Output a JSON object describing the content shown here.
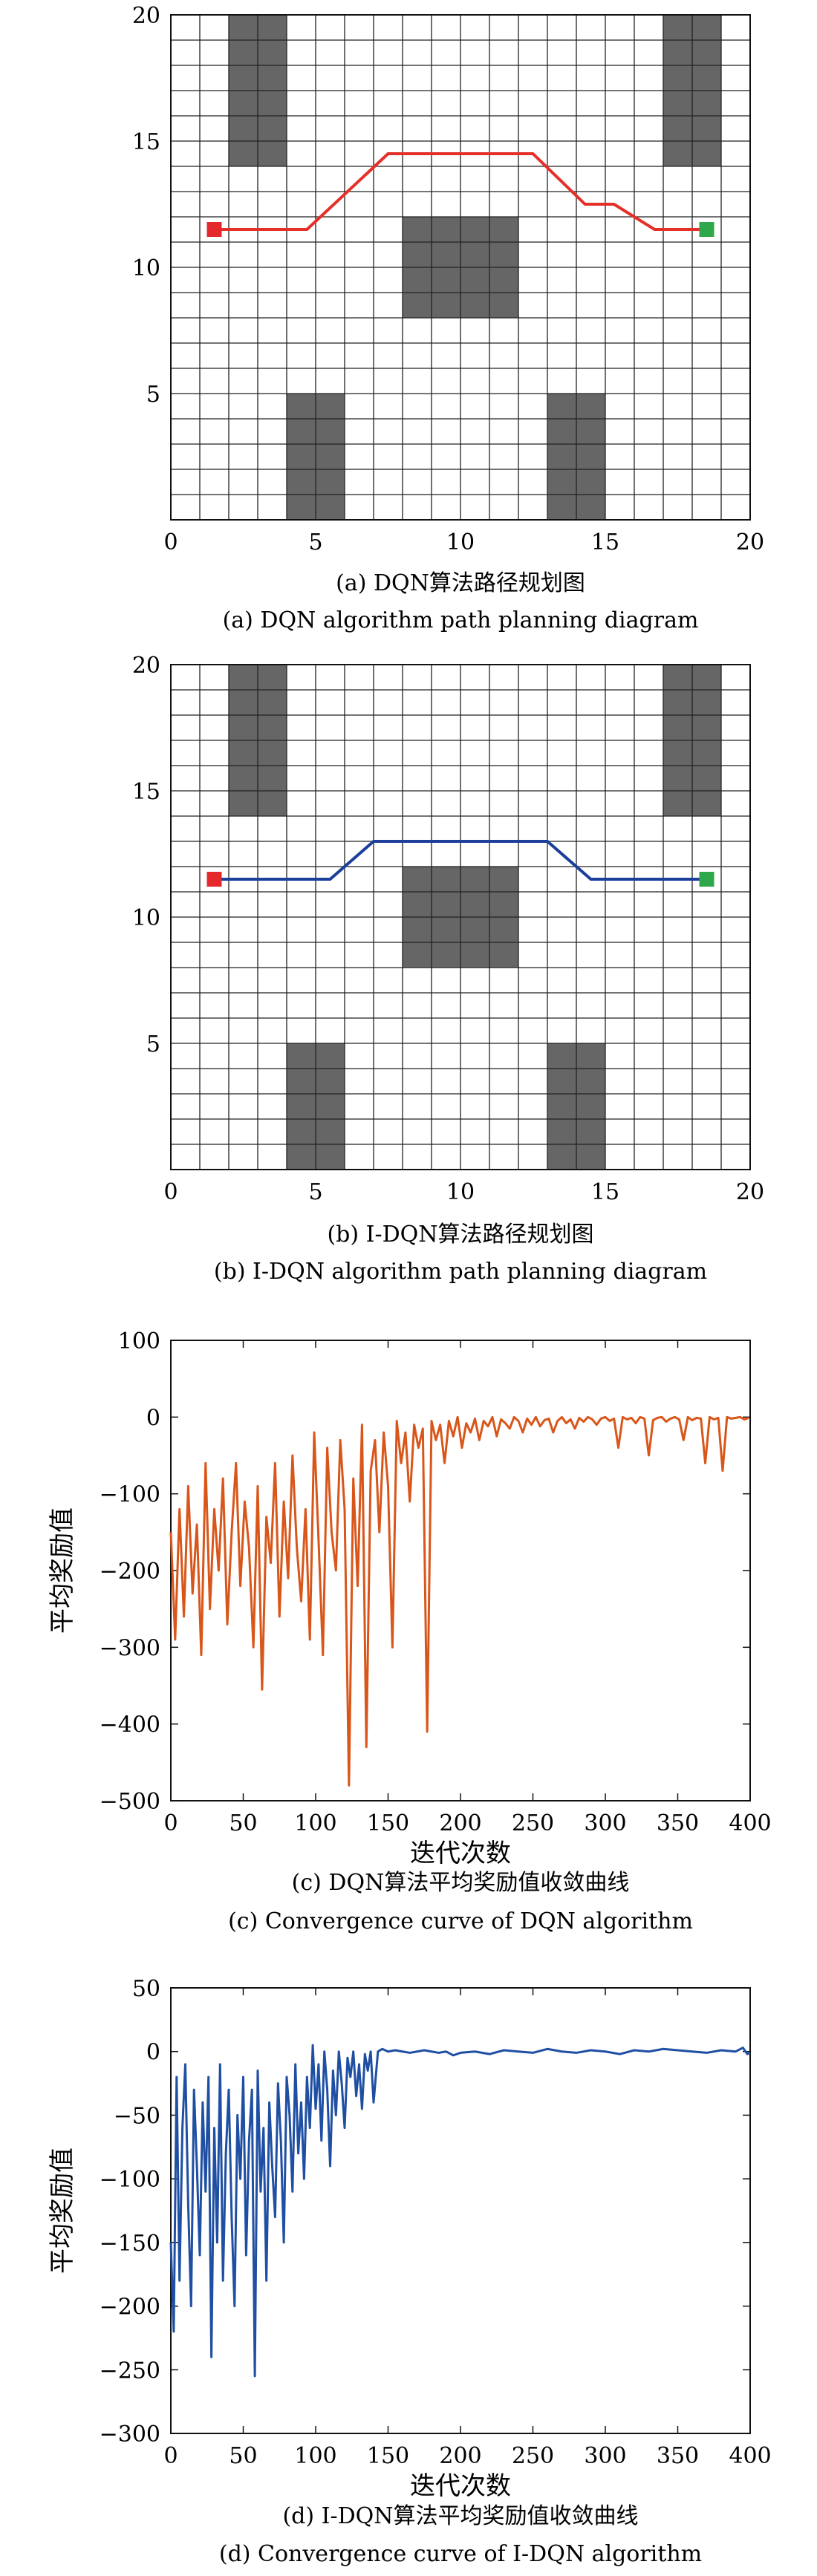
{
  "chart_data": [
    {
      "type": "grid-path",
      "grid_size": 20,
      "xlim": [
        0,
        20
      ],
      "ylim": [
        0,
        20
      ],
      "x_ticks": [
        "0",
        "5",
        "10",
        "15",
        "20"
      ],
      "y_ticks": [
        "5",
        "10",
        "15",
        "20"
      ],
      "obstacles": [
        {
          "x": [
            2,
            4
          ],
          "y": [
            14,
            20
          ]
        },
        {
          "x": [
            17,
            19
          ],
          "y": [
            14,
            20
          ]
        },
        {
          "x": [
            8,
            12
          ],
          "y": [
            8,
            12
          ]
        },
        {
          "x": [
            4,
            6
          ],
          "y": [
            0,
            5
          ]
        },
        {
          "x": [
            13,
            15
          ],
          "y": [
            0,
            5
          ]
        }
      ],
      "start": [
        1.5,
        11.5
      ],
      "goal": [
        18.5,
        11.5
      ],
      "path": {
        "x": [
          1.5,
          4.7,
          7.5,
          12.5,
          14.3,
          15.3,
          16.7,
          18.5
        ],
        "y": [
          11.5,
          11.5,
          14.5,
          14.5,
          12.5,
          12.5,
          11.5,
          11.5
        ],
        "color": "#e5302a"
      },
      "caption_cn": "(a) DQN算法路径规划图",
      "caption_en": "(a) DQN algorithm path planning diagram"
    },
    {
      "type": "grid-path",
      "grid_size": 20,
      "xlim": [
        0,
        20
      ],
      "ylim": [
        0,
        20
      ],
      "x_ticks": [
        "0",
        "5",
        "10",
        "15",
        "20"
      ],
      "y_ticks": [
        "5",
        "10",
        "15",
        "20"
      ],
      "obstacles": [
        {
          "x": [
            2,
            4
          ],
          "y": [
            14,
            20
          ]
        },
        {
          "x": [
            17,
            19
          ],
          "y": [
            14,
            20
          ]
        },
        {
          "x": [
            8,
            12
          ],
          "y": [
            8,
            12
          ]
        },
        {
          "x": [
            4,
            6
          ],
          "y": [
            0,
            5
          ]
        },
        {
          "x": [
            13,
            15
          ],
          "y": [
            0,
            5
          ]
        }
      ],
      "start": [
        1.5,
        11.5
      ],
      "goal": [
        18.5,
        11.5
      ],
      "path": {
        "x": [
          1.5,
          5.5,
          7,
          13,
          14.5,
          18.5
        ],
        "y": [
          11.5,
          11.5,
          13,
          13,
          11.5,
          11.5
        ],
        "color": "#1b3f9a"
      },
      "caption_cn": "(b) I-DQN算法路径规划图",
      "caption_en": "(b) I-DQN algorithm path planning diagram"
    },
    {
      "type": "line",
      "xlabel": "迭代次数",
      "ylabel": "平均奖励值",
      "xlim": [
        0,
        400
      ],
      "ylim": [
        -500,
        100
      ],
      "x_ticks": [
        "0",
        "50",
        "100",
        "150",
        "200",
        "250",
        "300",
        "350",
        "400"
      ],
      "y_ticks": [
        "100",
        "0",
        "-100",
        "-200",
        "-300",
        "-400",
        "-500"
      ],
      "color": "#d9561a",
      "series": [
        {
          "x": [
            0,
            3,
            6,
            9,
            12,
            15,
            18,
            21,
            24,
            27,
            30,
            33,
            36,
            39,
            42,
            45,
            48,
            51,
            54,
            57,
            60,
            63,
            66,
            69,
            72,
            75,
            78,
            81,
            84,
            87,
            90,
            93,
            96,
            99,
            102,
            105,
            108,
            111,
            114,
            117,
            120,
            123,
            126,
            129,
            132,
            135,
            138,
            141,
            144,
            147,
            150,
            153,
            156,
            159,
            162,
            165,
            168,
            171,
            174,
            177,
            180,
            183,
            186,
            189,
            192,
            195,
            198,
            201,
            204,
            207,
            210,
            213,
            216,
            219,
            222,
            225,
            228,
            231,
            234,
            237,
            240,
            243,
            246,
            249,
            252,
            255,
            258,
            261,
            264,
            267,
            270,
            273,
            276,
            279,
            282,
            285,
            288,
            291,
            294,
            297,
            300,
            303,
            306,
            309,
            312,
            315,
            318,
            321,
            324,
            327,
            330,
            333,
            336,
            339,
            342,
            345,
            348,
            351,
            354,
            357,
            360,
            363,
            366,
            369,
            372,
            375,
            378,
            381,
            384,
            387,
            390,
            393,
            396,
            399
          ],
          "values": [
            -150,
            -290,
            -120,
            -260,
            -90,
            -230,
            -140,
            -310,
            -60,
            -250,
            -120,
            -200,
            -80,
            -270,
            -150,
            -60,
            -220,
            -110,
            -170,
            -300,
            -90,
            -355,
            -130,
            -190,
            -60,
            -260,
            -110,
            -210,
            -50,
            -170,
            -240,
            -120,
            -290,
            -20,
            -160,
            -310,
            -40,
            -150,
            -200,
            -30,
            -120,
            -480,
            -80,
            -220,
            -10,
            -430,
            -70,
            -30,
            -150,
            -20,
            -90,
            -300,
            -5,
            -60,
            -20,
            -110,
            -10,
            -40,
            -15,
            -410,
            -5,
            -30,
            -10,
            -60,
            -5,
            -25,
            0,
            -40,
            -8,
            -20,
            -2,
            -30,
            -5,
            -12,
            0,
            -25,
            -3,
            -8,
            -15,
            0,
            -5,
            -20,
            -2,
            -10,
            0,
            -12,
            -4,
            -2,
            -20,
            -5,
            0,
            -8,
            -3,
            -15,
            -1,
            -6,
            0,
            -3,
            -10,
            -2,
            0,
            -5,
            -2,
            -40,
            0,
            -3,
            -1,
            -8,
            0,
            -2,
            -50,
            -4,
            -1,
            0,
            -6,
            -2,
            0,
            -3,
            -30,
            0,
            -4,
            -1,
            -2,
            -60,
            0,
            -3,
            -1,
            -70,
            0,
            -2,
            -1,
            0,
            -3,
            -1
          ]
        }
      ],
      "caption_cn": "(c) DQN算法平均奖励值收敛曲线",
      "caption_en": "(c) Convergence curve of DQN algorithm"
    },
    {
      "type": "line",
      "xlabel": "迭代次数",
      "ylabel": "平均奖励值",
      "xlim": [
        0,
        400
      ],
      "ylim": [
        -300,
        50
      ],
      "x_ticks": [
        "0",
        "50",
        "100",
        "150",
        "200",
        "250",
        "300",
        "350",
        "400"
      ],
      "y_ticks": [
        "50",
        "0",
        "-50",
        "-100",
        "-150",
        "-200",
        "-250",
        "-300"
      ],
      "color": "#1f4fa3",
      "series": [
        {
          "x": [
            0,
            2,
            4,
            6,
            8,
            10,
            12,
            14,
            16,
            18,
            20,
            22,
            24,
            26,
            28,
            30,
            32,
            34,
            36,
            38,
            40,
            42,
            44,
            46,
            48,
            50,
            52,
            54,
            56,
            58,
            60,
            62,
            64,
            66,
            68,
            70,
            72,
            74,
            76,
            78,
            80,
            82,
            84,
            86,
            88,
            90,
            92,
            94,
            96,
            98,
            100,
            102,
            104,
            106,
            108,
            110,
            112,
            114,
            116,
            118,
            120,
            122,
            124,
            126,
            128,
            130,
            132,
            134,
            136,
            138,
            140,
            143,
            146,
            150,
            155,
            160,
            165,
            170,
            175,
            180,
            185,
            190,
            195,
            200,
            210,
            220,
            230,
            240,
            250,
            260,
            270,
            280,
            290,
            300,
            310,
            320,
            330,
            340,
            350,
            360,
            370,
            380,
            390,
            395,
            398,
            400
          ],
          "values": [
            -150,
            -220,
            -20,
            -180,
            -60,
            -10,
            -120,
            -200,
            -30,
            -90,
            -160,
            -40,
            -110,
            -20,
            -240,
            -60,
            -150,
            -10,
            -180,
            -80,
            -30,
            -130,
            -200,
            -50,
            -100,
            -20,
            -160,
            -70,
            -30,
            -255,
            -15,
            -110,
            -60,
            -180,
            -40,
            -90,
            -130,
            -25,
            -70,
            -150,
            -20,
            -50,
            -110,
            -10,
            -80,
            -40,
            -100,
            -20,
            -60,
            5,
            -45,
            -10,
            -70,
            0,
            -30,
            -90,
            -15,
            -50,
            0,
            -25,
            -60,
            -5,
            -20,
            0,
            -35,
            -10,
            -45,
            -2,
            -15,
            0,
            -40,
            0,
            2,
            0,
            1,
            0,
            -1,
            0,
            1,
            0,
            -1,
            0,
            -3,
            -1,
            0,
            -2,
            1,
            0,
            -1,
            2,
            0,
            -1,
            1,
            0,
            -2,
            1,
            0,
            2,
            1,
            0,
            -1,
            1,
            0,
            3,
            -2,
            -1
          ]
        }
      ],
      "caption_cn": "(d) I-DQN算法平均奖励值收敛曲线",
      "caption_en": "(d) Convergence curve of I-DQN algorithm"
    }
  ]
}
